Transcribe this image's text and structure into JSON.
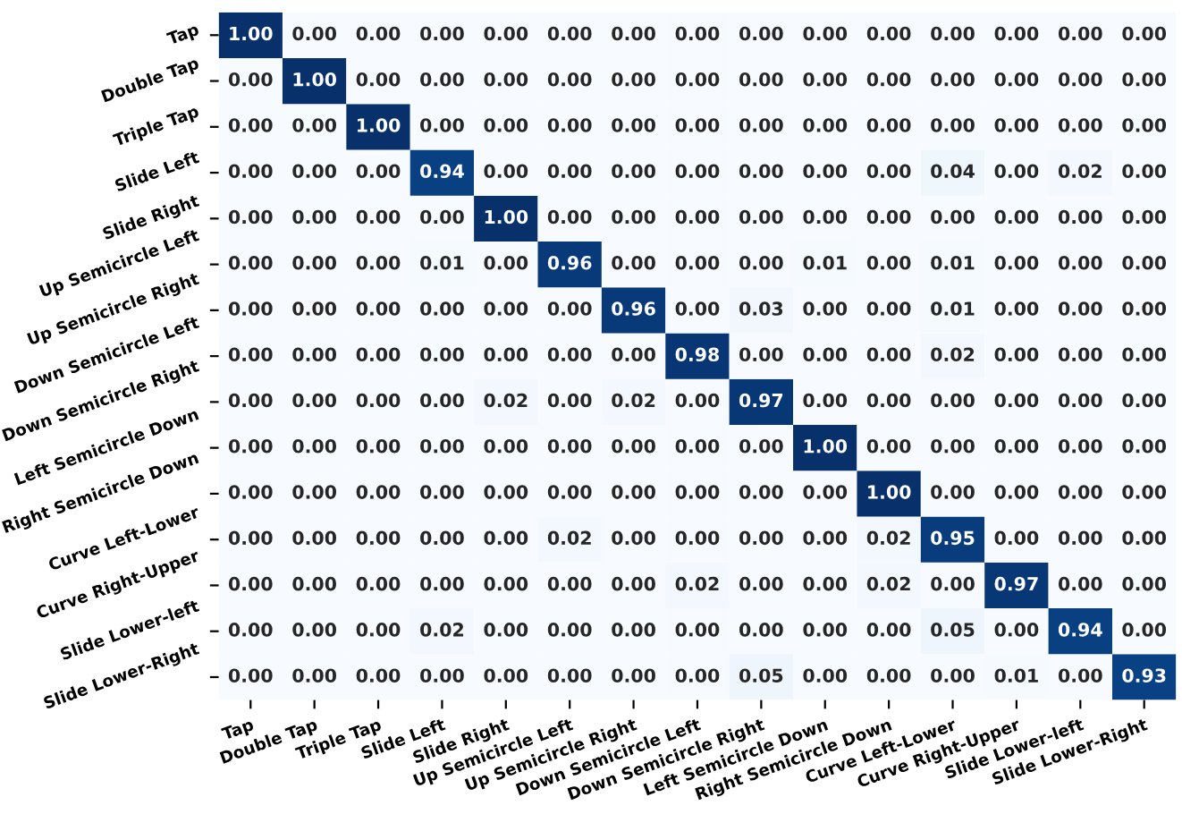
{
  "chart_data": {
    "type": "heatmap",
    "categories": [
      "Tap",
      "Double Tap",
      "Triple Tap",
      "Slide Left",
      "Slide Right",
      "Up Semicircle Left",
      "Up Semicircle Right",
      "Down Semicircle Left",
      "Down Semicircle Right",
      "Left Semicircle Down",
      "Right Semicircle Down",
      "Curve Left-Lower",
      "Curve Right-Upper",
      "Slide Lower-left",
      "Slide Lower-Right"
    ],
    "y_categories": [
      "Tap",
      "Double Tap",
      "Triple Tap",
      "Slide Left",
      "Slide Right",
      "Up Semicircle Left",
      "Up Semicircle Right",
      "Down Semicircle Left",
      "Down Semicircle Right",
      "Left Semicircle Down",
      "Right Semicircle Down",
      "Curve Left-Lower",
      "Curve Right-Upper",
      "Slide Lower-left",
      "Slide Lower-Right"
    ],
    "cells": [
      [
        1,
        0,
        0,
        0,
        0,
        0,
        0,
        0,
        0,
        0,
        0,
        0,
        0,
        0,
        0
      ],
      [
        0,
        1,
        0,
        0,
        0,
        0,
        0,
        0,
        0,
        0,
        0,
        0,
        0,
        0,
        0
      ],
      [
        0,
        0,
        1,
        0,
        0,
        0,
        0,
        0,
        0,
        0,
        0,
        0,
        0,
        0,
        0
      ],
      [
        0,
        0,
        0,
        0.94,
        0,
        0,
        0,
        0,
        0,
        0,
        0,
        0.04,
        0,
        0.02,
        0
      ],
      [
        0,
        0,
        0,
        0,
        1,
        0,
        0,
        0,
        0,
        0,
        0,
        0,
        0,
        0,
        0
      ],
      [
        0,
        0,
        0,
        0.01,
        0,
        0.96,
        0,
        0,
        0,
        0.01,
        0,
        0.01,
        0,
        0,
        0
      ],
      [
        0,
        0,
        0,
        0,
        0,
        0,
        0.96,
        0,
        0.03,
        0,
        0,
        0.01,
        0,
        0,
        0
      ],
      [
        0,
        0,
        0,
        0,
        0,
        0,
        0,
        0.98,
        0,
        0,
        0,
        0.02,
        0,
        0,
        0
      ],
      [
        0,
        0,
        0,
        0,
        0.02,
        0,
        0.02,
        0,
        0.97,
        0,
        0,
        0,
        0,
        0,
        0
      ],
      [
        0,
        0,
        0,
        0,
        0,
        0,
        0,
        0,
        0,
        1,
        0,
        0,
        0,
        0,
        0
      ],
      [
        0,
        0,
        0,
        0,
        0,
        0,
        0,
        0,
        0,
        0,
        1,
        0,
        0,
        0,
        0
      ],
      [
        0,
        0,
        0,
        0,
        0,
        0.02,
        0,
        0,
        0,
        0,
        0.02,
        0.95,
        0,
        0,
        0
      ],
      [
        0,
        0,
        0,
        0,
        0,
        0,
        0,
        0.02,
        0,
        0,
        0.02,
        0,
        0.97,
        0,
        0
      ],
      [
        0,
        0,
        0,
        0.02,
        0,
        0,
        0,
        0,
        0,
        0,
        0,
        0.05,
        0,
        0.94,
        0
      ],
      [
        0,
        0,
        0,
        0,
        0,
        0,
        0,
        0,
        0.05,
        0,
        0,
        0,
        0.01,
        0,
        0.93
      ]
    ],
    "cell_labels": [
      [
        "1.00",
        "0.00",
        "0.00",
        "0.00",
        "0.00",
        "0.00",
        "0.00",
        "0.00",
        "0.00",
        "0.00",
        "0.00",
        "0.00",
        "0.00",
        "0.00",
        "0.00"
      ],
      [
        "0.00",
        "1.00",
        "0.00",
        "0.00",
        "0.00",
        "0.00",
        "0.00",
        "0.00",
        "0.00",
        "0.00",
        "0.00",
        "0.00",
        "0.00",
        "0.00",
        "0.00"
      ],
      [
        "0.00",
        "0.00",
        "1.00",
        "0.00",
        "0.00",
        "0.00",
        "0.00",
        "0.00",
        "0.00",
        "0.00",
        "0.00",
        "0.00",
        "0.00",
        "0.00",
        "0.00"
      ],
      [
        "0.00",
        "0.00",
        "0.00",
        "0.94",
        "0.00",
        "0.00",
        "0.00",
        "0.00",
        "0.00",
        "0.00",
        "0.00",
        "0.04",
        "0.00",
        "0.02",
        "0.00"
      ],
      [
        "0.00",
        "0.00",
        "0.00",
        "0.00",
        "1.00",
        "0.00",
        "0.00",
        "0.00",
        "0.00",
        "0.00",
        "0.00",
        "0.00",
        "0.00",
        "0.00",
        "0.00"
      ],
      [
        "0.00",
        "0.00",
        "0.00",
        "0.01",
        "0.00",
        "0.96",
        "0.00",
        "0.00",
        "0.00",
        "0.01",
        "0.00",
        "0.01",
        "0.00",
        "0.00",
        "0.00"
      ],
      [
        "0.00",
        "0.00",
        "0.00",
        "0.00",
        "0.00",
        "0.00",
        "0.96",
        "0.00",
        "0.03",
        "0.00",
        "0.00",
        "0.01",
        "0.00",
        "0.00",
        "0.00"
      ],
      [
        "0.00",
        "0.00",
        "0.00",
        "0.00",
        "0.00",
        "0.00",
        "0.00",
        "0.98",
        "0.00",
        "0.00",
        "0.00",
        "0.02",
        "0.00",
        "0.00",
        "0.00"
      ],
      [
        "0.00",
        "0.00",
        "0.00",
        "0.00",
        "0.02",
        "0.00",
        "0.02",
        "0.00",
        "0.97",
        "0.00",
        "0.00",
        "0.00",
        "0.00",
        "0.00",
        "0.00"
      ],
      [
        "0.00",
        "0.00",
        "0.00",
        "0.00",
        "0.00",
        "0.00",
        "0.00",
        "0.00",
        "0.00",
        "1.00",
        "0.00",
        "0.00",
        "0.00",
        "0.00",
        "0.00"
      ],
      [
        "0.00",
        "0.00",
        "0.00",
        "0.00",
        "0.00",
        "0.00",
        "0.00",
        "0.00",
        "0.00",
        "0.00",
        "1.00",
        "0.00",
        "0.00",
        "0.00",
        "0.00"
      ],
      [
        "0.00",
        "0.00",
        "0.00",
        "0.00",
        "0.00",
        "0.02",
        "0.00",
        "0.00",
        "0.00",
        "0.00",
        "0.02",
        "0.95",
        "0.00",
        "0.00",
        "0.00"
      ],
      [
        "0.00",
        "0.00",
        "0.00",
        "0.00",
        "0.00",
        "0.00",
        "0.00",
        "0.02",
        "0.00",
        "0.00",
        "0.02",
        "0.00",
        "0.97",
        "0.00",
        "0.00"
      ],
      [
        "0.00",
        "0.00",
        "0.00",
        "0.02",
        "0.00",
        "0.00",
        "0.00",
        "0.00",
        "0.00",
        "0.00",
        "0.00",
        "0.05",
        "0.00",
        "0.94",
        "0.00"
      ],
      [
        "0.00",
        "0.00",
        "0.00",
        "0.00",
        "0.00",
        "0.00",
        "0.00",
        "0.00",
        "0.05",
        "0.00",
        "0.00",
        "0.00",
        "0.01",
        "0.00",
        "0.93"
      ]
    ]
  }
}
